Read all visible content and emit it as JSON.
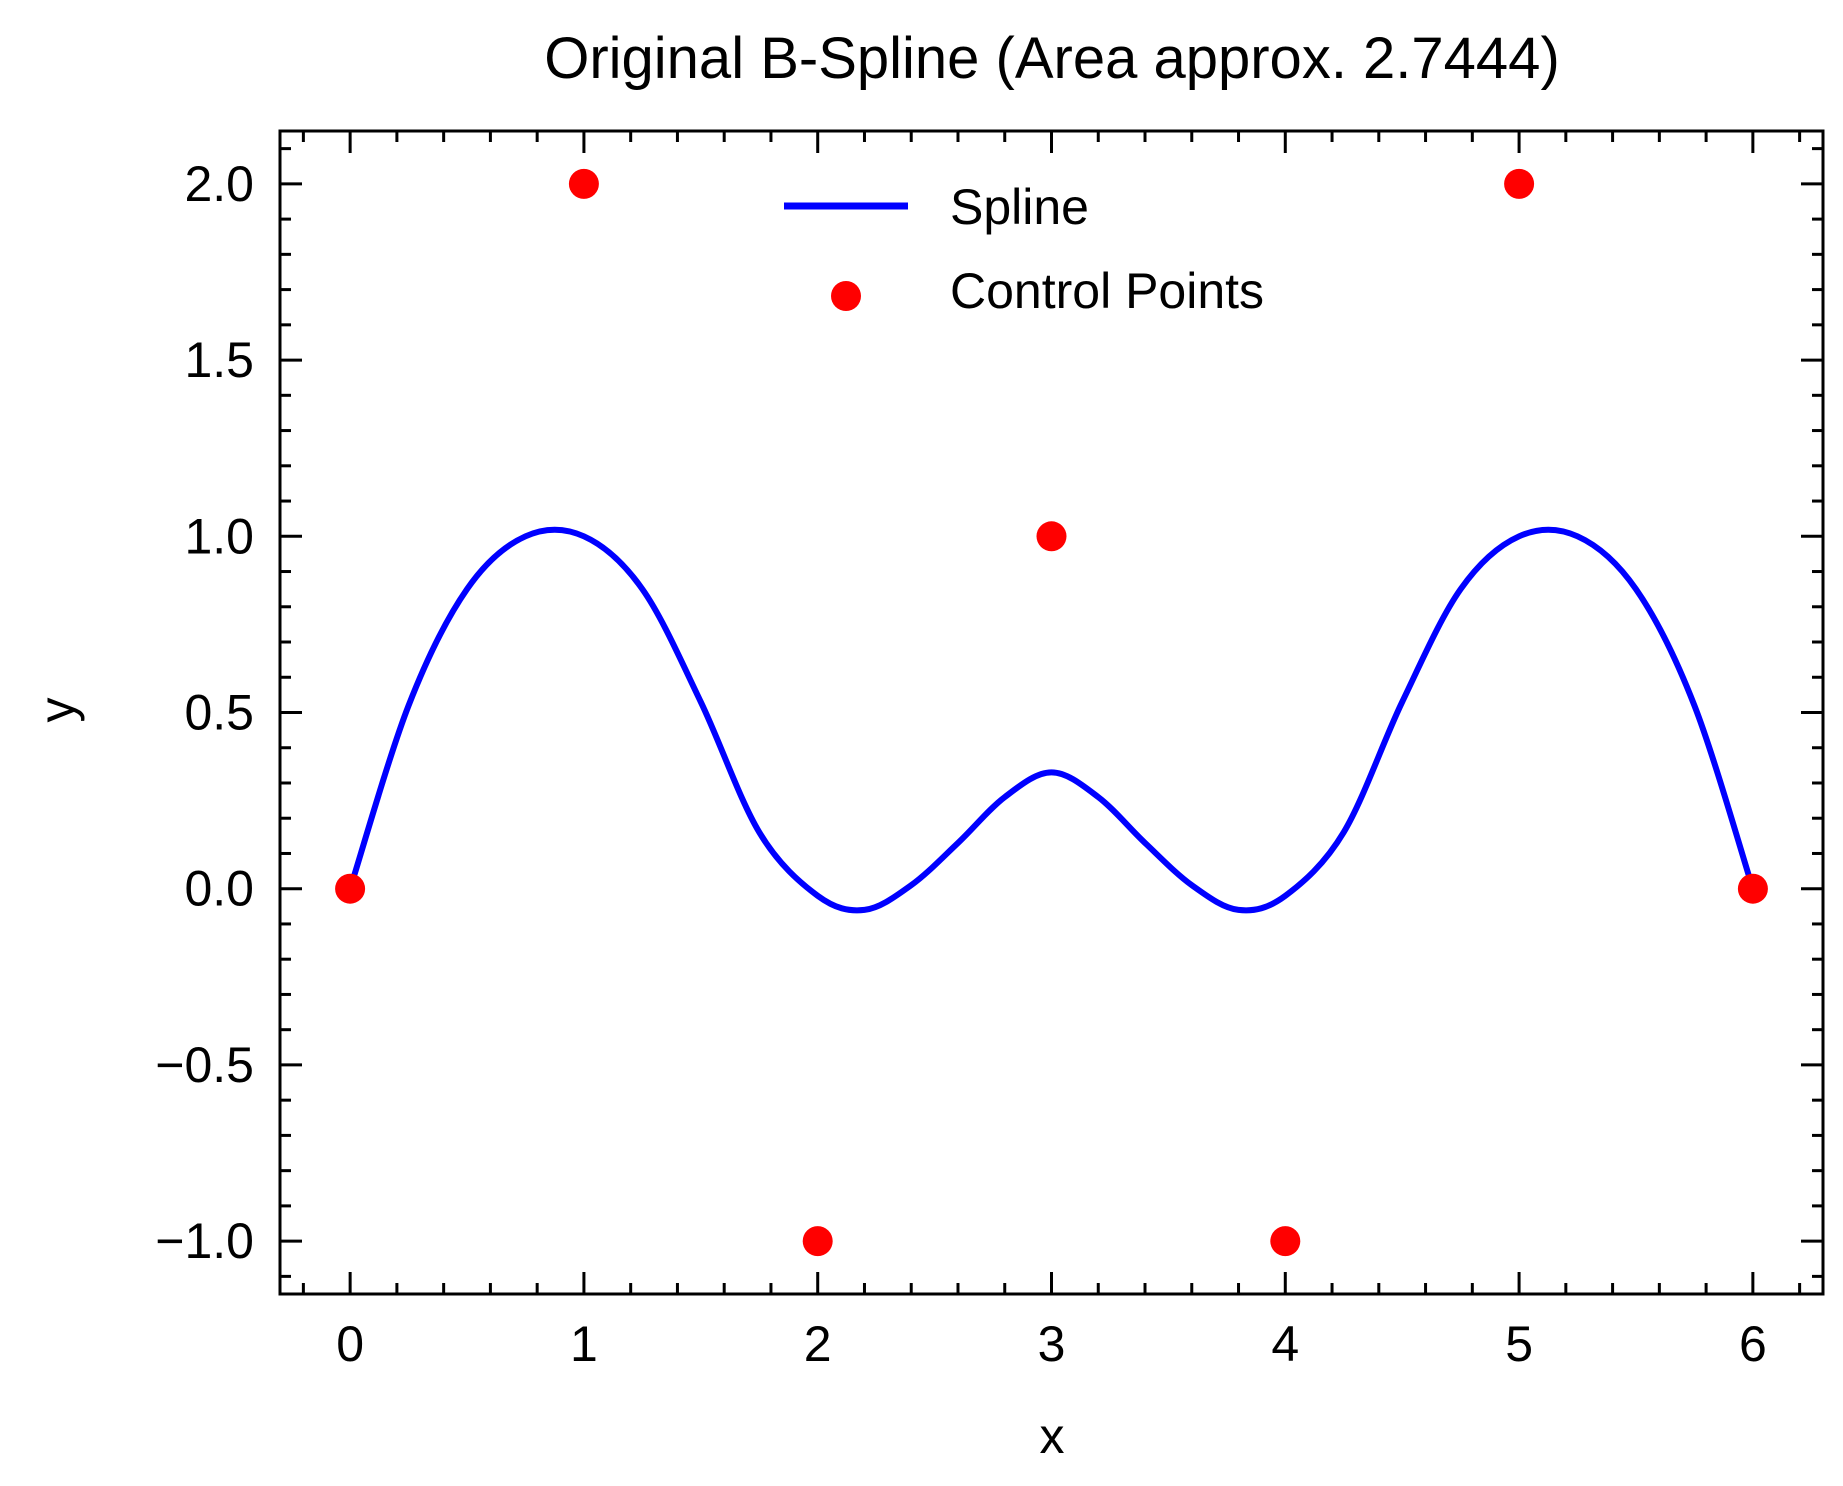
{
  "chart_data": {
    "type": "line",
    "title": "Original B-Spline (Area approx. 2.7444)",
    "xlabel": "x",
    "ylabel": "y",
    "xlim": [
      -0.3,
      6.3
    ],
    "ylim": [
      -1.15,
      2.15
    ],
    "xticks": [
      0,
      1,
      2,
      3,
      4,
      5,
      6
    ],
    "xtick_labels": [
      "0",
      "1",
      "2",
      "3",
      "4",
      "5",
      "6"
    ],
    "yticks": [
      -1.0,
      -0.5,
      0.0,
      0.5,
      1.0,
      1.5,
      2.0
    ],
    "ytick_labels": [
      "−1.0",
      "−0.5",
      "0.0",
      "0.5",
      "1.0",
      "1.5",
      "2.0"
    ],
    "grid": false,
    "legend_position": "upper-center",
    "series": [
      {
        "name": "Spline",
        "kind": "line",
        "color": "#0000ff",
        "x": [
          0,
          0.25,
          0.5,
          0.75,
          1.0,
          1.25,
          1.5,
          1.75,
          2.0,
          2.2,
          2.4,
          2.6,
          2.8,
          3.0,
          3.2,
          3.4,
          3.6,
          3.8,
          4.0,
          4.25,
          4.5,
          4.75,
          5.0,
          5.25,
          5.5,
          5.75,
          6.0
        ],
        "y": [
          0,
          0.52,
          0.85,
          1.0,
          1.0,
          0.85,
          0.53,
          0.16,
          -0.02,
          -0.06,
          0.01,
          0.13,
          0.26,
          0.33,
          0.26,
          0.13,
          0.01,
          -0.06,
          -0.02,
          0.16,
          0.53,
          0.85,
          1.0,
          1.0,
          0.85,
          0.52,
          0
        ]
      },
      {
        "name": "Control Points",
        "kind": "scatter",
        "color": "#ff0000",
        "x": [
          0,
          1,
          2,
          3,
          4,
          5,
          6
        ],
        "y": [
          0,
          2,
          -1,
          1,
          -1,
          2,
          0
        ]
      }
    ]
  }
}
